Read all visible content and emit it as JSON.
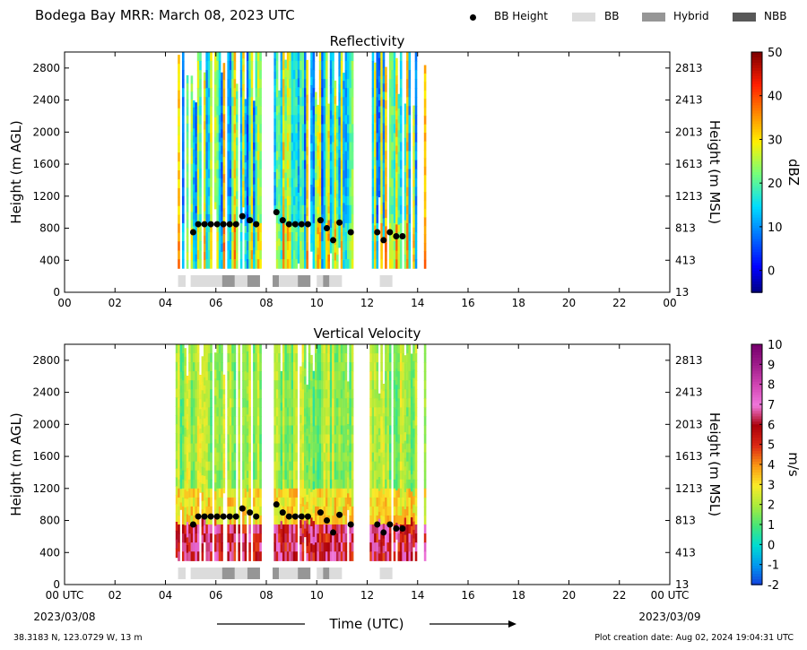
{
  "header": {
    "title": "Bodega Bay MRR:  March 08, 2023 UTC"
  },
  "legend": {
    "items": [
      {
        "label": "BB Height",
        "kind": "dot",
        "color": "#000000"
      },
      {
        "label": "BB",
        "kind": "swatch",
        "color": "#dcdcdc"
      },
      {
        "label": "Hybrid",
        "kind": "swatch",
        "color": "#969696"
      },
      {
        "label": "NBB",
        "kind": "swatch",
        "color": "#585858"
      }
    ]
  },
  "footer": {
    "coords": "38.3183 N, 123.0729 W, 13 m",
    "created": "Plot creation date: Aug 02, 2024 19:04:31 UTC",
    "xlabel": "Time (UTC)",
    "start_date": "2023/03/08",
    "end_date": "2023/03/09"
  },
  "chart_data": [
    {
      "type": "heatmap",
      "title": "Reflectivity",
      "ylabel": "Height (m AGL)",
      "ylabel_right": "Height (m MSL)",
      "x_ticks": [
        "00",
        "02",
        "04",
        "06",
        "08",
        "10",
        "12",
        "14",
        "16",
        "18",
        "20",
        "22",
        "00"
      ],
      "y_ticks": [
        0,
        400,
        800,
        1200,
        1600,
        2000,
        2400,
        2800
      ],
      "y_ticks_right": [
        13,
        413,
        813,
        1213,
        1613,
        2013,
        2413,
        2813
      ],
      "xlim_hours": [
        0,
        24
      ],
      "ylim": [
        0,
        3000
      ],
      "colorbar": {
        "label": "dBZ",
        "ticks": [
          0,
          10,
          20,
          30,
          40,
          50
        ],
        "range": [
          -5,
          50
        ]
      },
      "data_coverage_hours": [
        [
          4.4,
          7.8
        ],
        [
          8.3,
          11.4
        ],
        [
          12.1,
          13.9
        ],
        [
          14.25,
          14.3
        ]
      ],
      "data_top_m": 3000,
      "data_bottom_m": 300,
      "bb_height": {
        "time_h": [
          5.1,
          5.3,
          5.55,
          5.8,
          6.05,
          6.3,
          6.55,
          6.8,
          7.05,
          7.35,
          7.6,
          8.4,
          8.65,
          8.9,
          9.15,
          9.4,
          9.65,
          10.15,
          10.4,
          10.65,
          10.9,
          11.35,
          12.4,
          12.65,
          12.9,
          13.15,
          13.4
        ],
        "height_m": [
          750,
          850,
          850,
          850,
          850,
          850,
          850,
          850,
          950,
          900,
          850,
          1000,
          900,
          850,
          850,
          850,
          850,
          900,
          800,
          650,
          870,
          750,
          750,
          650,
          750,
          700,
          700
        ]
      },
      "bb_classification": [
        {
          "start": 4.5,
          "end": 4.8,
          "type": "BB"
        },
        {
          "start": 5.0,
          "end": 6.25,
          "type": "BB"
        },
        {
          "start": 6.25,
          "end": 6.75,
          "type": "Hybrid"
        },
        {
          "start": 6.75,
          "end": 7.25,
          "type": "BB"
        },
        {
          "start": 7.25,
          "end": 7.75,
          "type": "Hybrid"
        },
        {
          "start": 8.25,
          "end": 8.5,
          "type": "Hybrid"
        },
        {
          "start": 8.5,
          "end": 9.25,
          "type": "BB"
        },
        {
          "start": 9.25,
          "end": 9.75,
          "type": "Hybrid"
        },
        {
          "start": 10.0,
          "end": 10.25,
          "type": "BB"
        },
        {
          "start": 10.25,
          "end": 10.5,
          "type": "Hybrid"
        },
        {
          "start": 10.5,
          "end": 11.0,
          "type": "BB"
        },
        {
          "start": 12.5,
          "end": 13.0,
          "type": "BB"
        }
      ]
    },
    {
      "type": "heatmap",
      "title": "Vertical Velocity",
      "ylabel": "Height (m AGL)",
      "ylabel_right": "Height (m MSL)",
      "x_ticks": [
        "00 UTC",
        "02",
        "04",
        "06",
        "08",
        "10",
        "12",
        "14",
        "16",
        "18",
        "20",
        "22",
        "00 UTC"
      ],
      "y_ticks": [
        0,
        400,
        800,
        1200,
        1600,
        2000,
        2400,
        2800
      ],
      "y_ticks_right": [
        13,
        413,
        813,
        1213,
        1613,
        2013,
        2413,
        2813
      ],
      "xlim_hours": [
        0,
        24
      ],
      "ylim": [
        0,
        3000
      ],
      "colorbar": {
        "label": "m/s",
        "ticks": [
          -2,
          -1,
          0,
          1,
          2,
          3,
          4,
          5,
          6,
          7,
          8,
          9,
          10
        ],
        "range": [
          -2,
          10
        ]
      },
      "data_coverage_hours": [
        [
          4.4,
          7.8
        ],
        [
          8.3,
          11.4
        ],
        [
          12.1,
          13.9
        ],
        [
          14.25,
          14.3
        ]
      ],
      "data_top_m": 3000,
      "data_bottom_m": 300,
      "bb_height": {
        "time_h": [
          5.1,
          5.3,
          5.55,
          5.8,
          6.05,
          6.3,
          6.55,
          6.8,
          7.05,
          7.35,
          7.6,
          8.4,
          8.65,
          8.9,
          9.15,
          9.4,
          9.65,
          10.15,
          10.4,
          10.65,
          10.9,
          11.35,
          12.4,
          12.65,
          12.9,
          13.15,
          13.4
        ],
        "height_m": [
          750,
          850,
          850,
          850,
          850,
          850,
          850,
          850,
          950,
          900,
          850,
          1000,
          900,
          850,
          850,
          850,
          850,
          900,
          800,
          650,
          870,
          750,
          750,
          650,
          750,
          700,
          700
        ]
      },
      "bb_classification": [
        {
          "start": 4.5,
          "end": 4.8,
          "type": "BB"
        },
        {
          "start": 5.0,
          "end": 6.25,
          "type": "BB"
        },
        {
          "start": 6.25,
          "end": 6.75,
          "type": "Hybrid"
        },
        {
          "start": 6.75,
          "end": 7.25,
          "type": "BB"
        },
        {
          "start": 7.25,
          "end": 7.75,
          "type": "Hybrid"
        },
        {
          "start": 8.25,
          "end": 8.5,
          "type": "Hybrid"
        },
        {
          "start": 8.5,
          "end": 9.25,
          "type": "BB"
        },
        {
          "start": 9.25,
          "end": 9.75,
          "type": "Hybrid"
        },
        {
          "start": 10.0,
          "end": 10.25,
          "type": "BB"
        },
        {
          "start": 10.25,
          "end": 10.5,
          "type": "Hybrid"
        },
        {
          "start": 10.5,
          "end": 11.0,
          "type": "BB"
        },
        {
          "start": 12.5,
          "end": 13.0,
          "type": "BB"
        }
      ]
    }
  ]
}
